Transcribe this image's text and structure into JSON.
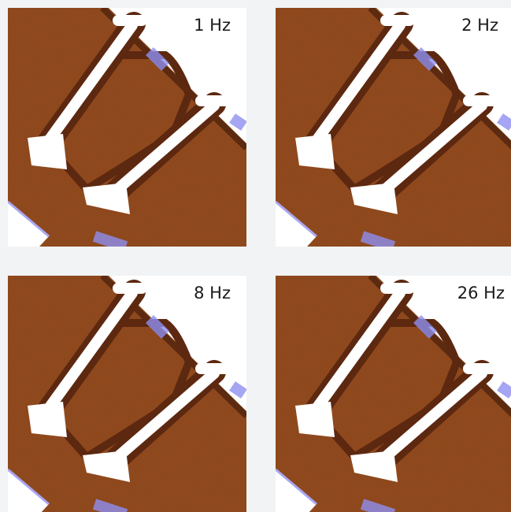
{
  "panels": [
    {
      "label": "1 Hz"
    },
    {
      "label": "2 Hz"
    },
    {
      "label": "8 Hz"
    },
    {
      "label": "26 Hz"
    }
  ]
}
